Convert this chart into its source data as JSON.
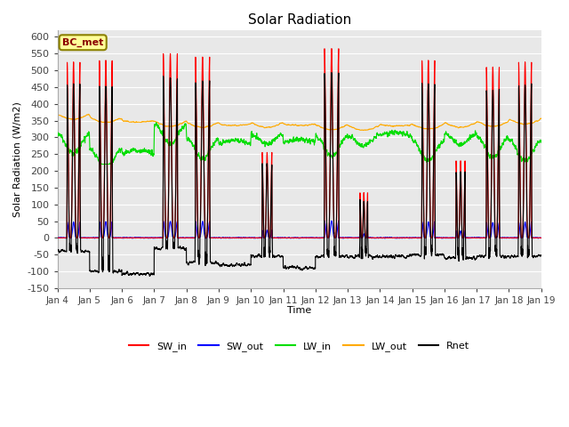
{
  "title": "Solar Radiation",
  "ylabel": "Solar Radiation (W/m2)",
  "xlabel": "Time",
  "annotation": "BC_met",
  "ylim": [
    -150,
    620
  ],
  "yticks": [
    -150,
    -100,
    -50,
    0,
    50,
    100,
    150,
    200,
    250,
    300,
    350,
    400,
    450,
    500,
    550,
    600
  ],
  "xtick_labels": [
    "Jan 4",
    "Jan 5",
    "Jan 6",
    "Jan 7",
    "Jan 8",
    "Jan 9",
    "Jan 10",
    "Jan 11",
    "Jan 12",
    "Jan 13",
    "Jan 14",
    "Jan 15",
    "Jan 16",
    "Jan 17",
    "Jan 18",
    "Jan 19"
  ],
  "colors": {
    "SW_in": "#ff0000",
    "SW_out": "#0000ff",
    "LW_in": "#00dd00",
    "LW_out": "#ffaa00",
    "Rnet": "#000000"
  },
  "legend_labels": [
    "SW_in",
    "SW_out",
    "LW_in",
    "LW_out",
    "Rnet"
  ],
  "plot_bg_color": "#e8e8e8",
  "grid_color": "#ffffff",
  "n_days": 15,
  "ppd": 288,
  "SW_in_peaks": [
    525,
    530,
    0,
    550,
    540,
    0,
    255,
    0,
    565,
    135,
    0,
    530,
    230,
    510,
    525
  ],
  "SW_in_widths": [
    0.2,
    0.2,
    0,
    0.22,
    0.22,
    0,
    0.15,
    0,
    0.22,
    0.12,
    0,
    0.2,
    0.14,
    0.2,
    0.2
  ],
  "lw_out_base": [
    370,
    360,
    350,
    348,
    345,
    340,
    345,
    340,
    338,
    336,
    338,
    340,
    345,
    348,
    355
  ],
  "lw_in_base": [
    310,
    265,
    250,
    340,
    295,
    280,
    310,
    285,
    305,
    305,
    305,
    290,
    310,
    300,
    290
  ],
  "rnet_night": [
    -40,
    -100,
    -108,
    -30,
    -75,
    -80,
    -55,
    -90,
    -55,
    -55,
    -55,
    -50,
    -60,
    -55,
    -55
  ]
}
